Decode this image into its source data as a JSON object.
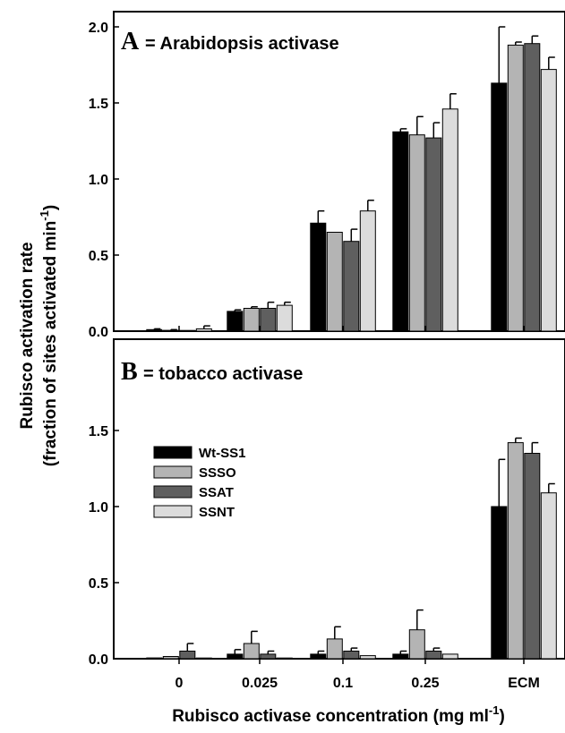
{
  "chart_data": [
    {
      "type": "bar",
      "panel_letter": "A",
      "panel_title": "= Arabidopsis activase",
      "categories": [
        "0",
        "0.025",
        "0.1",
        "0.25",
        "ECM"
      ],
      "ylim": [
        0,
        2.1
      ],
      "yticks": [
        "0.0",
        "0.5",
        "1.0",
        "1.5",
        "2.0"
      ],
      "series": [
        {
          "name": "Wt-SS1",
          "values": [
            0.01,
            0.13,
            0.71,
            1.31,
            1.63
          ],
          "errors": [
            0.005,
            0.01,
            0.08,
            0.02,
            0.37
          ],
          "color": "#000000"
        },
        {
          "name": "SSSO",
          "values": [
            0.005,
            0.15,
            0.65,
            1.29,
            1.88
          ],
          "errors": [
            0.005,
            0.01,
            0.0,
            0.12,
            0.02
          ],
          "color": "#b4b4b4"
        },
        {
          "name": "SSAT",
          "values": [
            0.0,
            0.15,
            0.59,
            1.27,
            1.89
          ],
          "errors": [
            0.0,
            0.04,
            0.08,
            0.1,
            0.05
          ],
          "color": "#5f5f5f"
        },
        {
          "name": "SSNT",
          "values": [
            0.015,
            0.17,
            0.79,
            1.46,
            1.72
          ],
          "errors": [
            0.02,
            0.02,
            0.07,
            0.1,
            0.08
          ],
          "color": "#dcdcdc"
        }
      ]
    },
    {
      "type": "bar",
      "panel_letter": "B",
      "panel_title": "= tobacco activase",
      "categories": [
        "0",
        "0.025",
        "0.1",
        "0.25",
        "ECM"
      ],
      "ylim": [
        0,
        2.1
      ],
      "yticks": [
        "0.0",
        "0.5",
        "1.0",
        "1.5"
      ],
      "series": [
        {
          "name": "Wt-SS1",
          "values": [
            0.005,
            0.03,
            0.03,
            0.03,
            1.0
          ],
          "errors": [
            0.0,
            0.03,
            0.02,
            0.02,
            0.31
          ],
          "color": "#000000"
        },
        {
          "name": "SSSO",
          "values": [
            0.015,
            0.1,
            0.13,
            0.19,
            1.42
          ],
          "errors": [
            0.0,
            0.08,
            0.08,
            0.13,
            0.03
          ],
          "color": "#b4b4b4"
        },
        {
          "name": "SSAT",
          "values": [
            0.05,
            0.03,
            0.05,
            0.05,
            1.35
          ],
          "errors": [
            0.05,
            0.02,
            0.02,
            0.02,
            0.07
          ],
          "color": "#5f5f5f"
        },
        {
          "name": "SSNT",
          "values": [
            0.0,
            0.0,
            0.02,
            0.03,
            1.09
          ],
          "errors": [
            0.0,
            0.0,
            0.0,
            0.0,
            0.06
          ],
          "color": "#dcdcdc"
        }
      ]
    }
  ],
  "axes": {
    "ylabel_line1": "Rubisco activation rate",
    "ylabel_line2": "(fraction of sites activated min",
    "ylabel_sup": "-1",
    "ylabel_end": ")",
    "xlabel": "Rubisco activase concentration (mg ml",
    "xlabel_sup": "-1",
    "xlabel_end": ")"
  },
  "legend": {
    "placement": "left, panel B",
    "items": [
      "Wt-SS1",
      "SSSO",
      "SSAT",
      "SSNT"
    ]
  }
}
